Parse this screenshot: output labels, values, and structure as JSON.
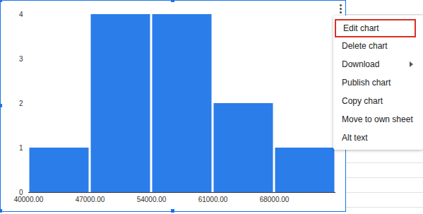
{
  "chart_data": {
    "type": "histogram",
    "bins": [
      40000,
      47000,
      54000,
      61000,
      68000,
      75000
    ],
    "values": [
      1,
      4,
      4,
      2,
      1
    ],
    "color": "#2b7de9",
    "xlim": [
      40000,
      75000
    ],
    "xticks": [
      {
        "value": 40000,
        "label": "40000.00"
      },
      {
        "value": 47000,
        "label": "47000.00"
      },
      {
        "value": 54000,
        "label": "54000.00"
      },
      {
        "value": 61000,
        "label": "61000.00"
      },
      {
        "value": 68000,
        "label": "68000.00"
      }
    ],
    "ylim": [
      0,
      4
    ],
    "yticks": [
      0,
      1,
      2,
      3,
      4
    ],
    "grid": false
  },
  "menu": {
    "items": [
      "Edit chart",
      "Delete chart",
      "Download",
      "Publish chart",
      "Copy chart",
      "Move to own sheet",
      "Alt text"
    ],
    "highlighted": "Edit chart",
    "submenu": "Download"
  }
}
